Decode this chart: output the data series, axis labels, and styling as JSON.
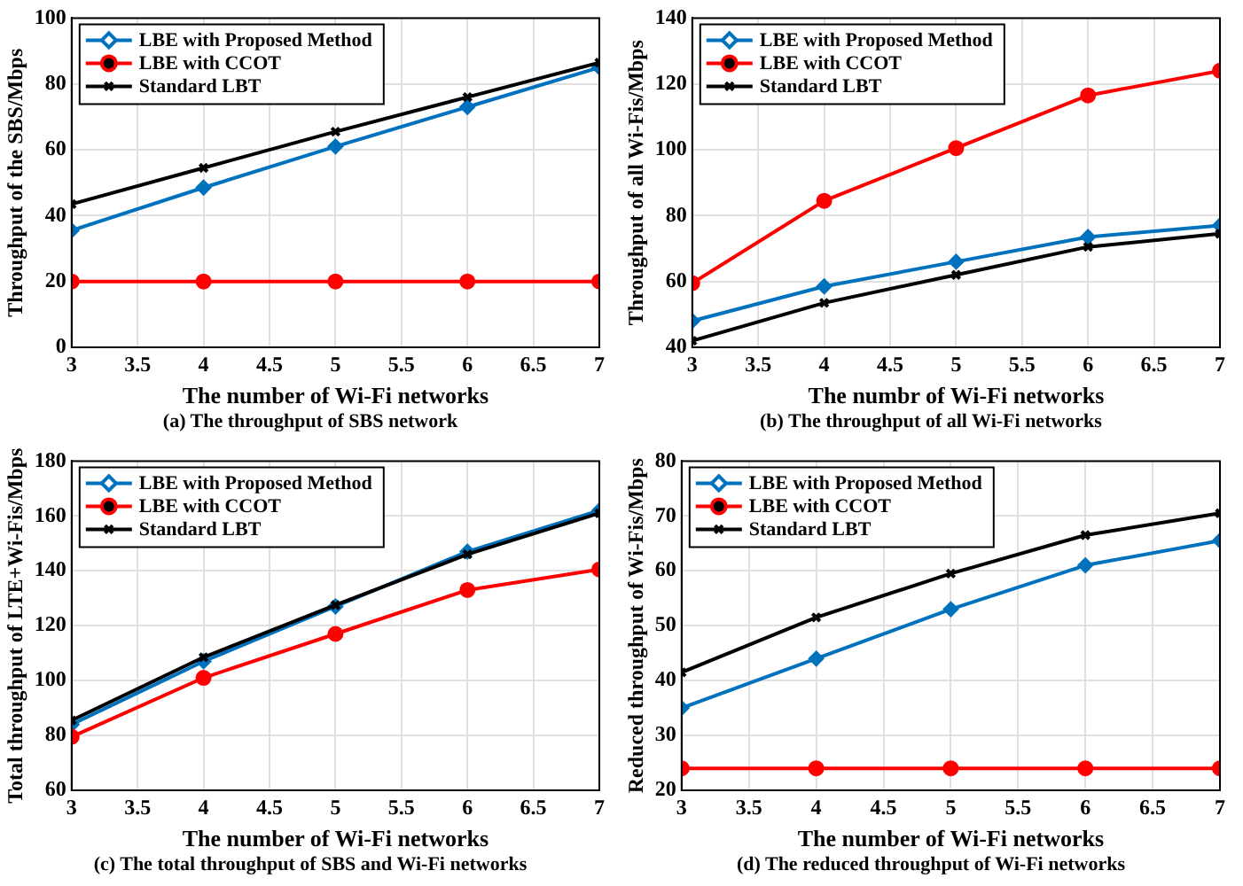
{
  "chart_data": [
    {
      "type": "line",
      "xlabel": "The number of Wi-Fi networks",
      "ylabel": "Throughput of the SBS/Mbps",
      "annotations": [
        "(a) The throughput of SBS network"
      ],
      "x": [
        3,
        4,
        5,
        6,
        7
      ],
      "xlim": [
        3,
        7
      ],
      "xticks": [
        3,
        3.5,
        4,
        4.5,
        5,
        5.5,
        6,
        6.5,
        7
      ],
      "ylim": [
        0,
        100
      ],
      "yticks": [
        0,
        20,
        40,
        60,
        80,
        100
      ],
      "grid": true,
      "legend": "top left",
      "series": [
        {
          "name": "LBE with Proposed Method",
          "color": "#0072bd",
          "marker": "diamond",
          "values": [
            35.5,
            48.5,
            61,
            73,
            85
          ]
        },
        {
          "name": "LBE with CCOT",
          "color": "#ff0000",
          "marker": "circle",
          "values": [
            20,
            20,
            20,
            20,
            20
          ]
        },
        {
          "name": "Standard LBT",
          "color": "#000000",
          "marker": "cross",
          "values": [
            43.5,
            54.5,
            65.5,
            76,
            86.5
          ]
        }
      ]
    },
    {
      "type": "line",
      "xlabel": "The numbr of Wi-Fi networks",
      "ylabel": "Throughput of all Wi-Fis/Mbps",
      "annotations": [
        "(b) The throughput of all Wi-Fi networks"
      ],
      "x": [
        3,
        4,
        5,
        6,
        7
      ],
      "xlim": [
        3,
        7
      ],
      "xticks": [
        3,
        3.5,
        4,
        4.5,
        5,
        5.5,
        6,
        6.5,
        7
      ],
      "ylim": [
        40,
        140
      ],
      "yticks": [
        40,
        60,
        80,
        100,
        120,
        140
      ],
      "grid": true,
      "legend": "top left",
      "series": [
        {
          "name": "LBE with Proposed Method",
          "color": "#0072bd",
          "marker": "diamond",
          "values": [
            48,
            58.5,
            66,
            73.5,
            77
          ]
        },
        {
          "name": "LBE with CCOT",
          "color": "#ff0000",
          "marker": "circle",
          "values": [
            59.5,
            84.5,
            100.5,
            116.5,
            124
          ]
        },
        {
          "name": "Standard LBT",
          "color": "#000000",
          "marker": "cross",
          "values": [
            42,
            53.5,
            62,
            70.5,
            74.5
          ]
        }
      ]
    },
    {
      "type": "line",
      "xlabel": "The number of Wi-Fi networks",
      "ylabel": "Total throughput of LTE+Wi-Fis/Mbps",
      "annotations": [
        "(c) The total throughput of SBS and Wi-Fi networks"
      ],
      "x": [
        3,
        4,
        5,
        6,
        7
      ],
      "xlim": [
        3,
        7
      ],
      "xticks": [
        3,
        3.5,
        4,
        4.5,
        5,
        5.5,
        6,
        6.5,
        7
      ],
      "ylim": [
        60,
        180
      ],
      "yticks": [
        60,
        80,
        100,
        120,
        140,
        160,
        180
      ],
      "grid": true,
      "legend": "top left",
      "series": [
        {
          "name": "LBE with Proposed Method",
          "color": "#0072bd",
          "marker": "diamond",
          "values": [
            84,
            107,
            127,
            147,
            162
          ]
        },
        {
          "name": "LBE with CCOT",
          "color": "#ff0000",
          "marker": "circle",
          "values": [
            79.5,
            101,
            117,
            133,
            140.5
          ]
        },
        {
          "name": "Standard LBT",
          "color": "#000000",
          "marker": "cross",
          "values": [
            85.5,
            108.5,
            127.5,
            146,
            161
          ]
        }
      ]
    },
    {
      "type": "line",
      "xlabel": "The number of Wi-Fi networks",
      "ylabel": "Reduced throughput of Wi-Fis/Mbps",
      "annotations": [
        "(d) The reduced throughput of Wi-Fi networks"
      ],
      "x": [
        3,
        4,
        5,
        6,
        7
      ],
      "xlim": [
        3,
        7
      ],
      "xticks": [
        3,
        3.5,
        4,
        4.5,
        5,
        5.5,
        6,
        6.5,
        7
      ],
      "ylim": [
        20,
        80
      ],
      "yticks": [
        20,
        30,
        40,
        50,
        60,
        70,
        80
      ],
      "grid": true,
      "legend": "top left",
      "series": [
        {
          "name": "LBE with Proposed Method",
          "color": "#0072bd",
          "marker": "diamond",
          "values": [
            35,
            44,
            53,
            61,
            65.5
          ]
        },
        {
          "name": "LBE with CCOT",
          "color": "#ff0000",
          "marker": "circle",
          "values": [
            24,
            24,
            24,
            24,
            24
          ]
        },
        {
          "name": "Standard LBT",
          "color": "#000000",
          "marker": "cross",
          "values": [
            41.5,
            51.5,
            59.5,
            66.5,
            70.5
          ]
        }
      ]
    }
  ]
}
